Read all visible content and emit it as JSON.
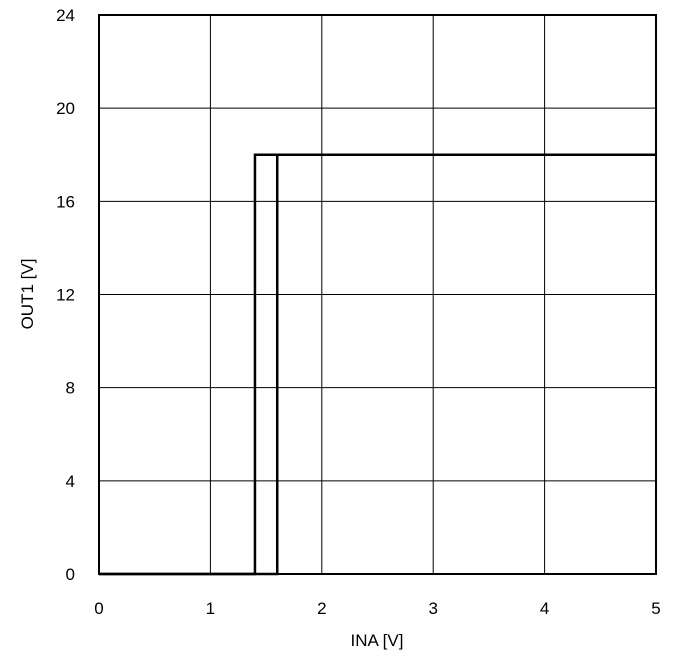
{
  "chart_data": {
    "type": "line",
    "title": "",
    "xlabel": "INA [V]",
    "ylabel": "OUT1 [V]",
    "xlim": [
      0,
      5
    ],
    "ylim": [
      0,
      24
    ],
    "xticks": [
      0,
      1,
      2,
      3,
      4,
      5
    ],
    "yticks": [
      0,
      4,
      8,
      12,
      16,
      20,
      24
    ],
    "xtick_labels": [
      "0",
      "1",
      "2",
      "3",
      "4",
      "5"
    ],
    "ytick_labels": [
      "0",
      "4",
      "8",
      "12",
      "16",
      "20",
      "24"
    ],
    "grid": true,
    "legend": "none",
    "series": [
      {
        "x": [
          0,
          1.6,
          1.6,
          5
        ],
        "y": [
          0,
          0,
          18,
          18
        ]
      },
      {
        "x": [
          5,
          1.4,
          1.4,
          0
        ],
        "y": [
          18,
          18,
          0,
          0
        ]
      }
    ],
    "colors": {
      "line": "#000000",
      "grid": "#000000",
      "background": "#ffffff"
    }
  }
}
